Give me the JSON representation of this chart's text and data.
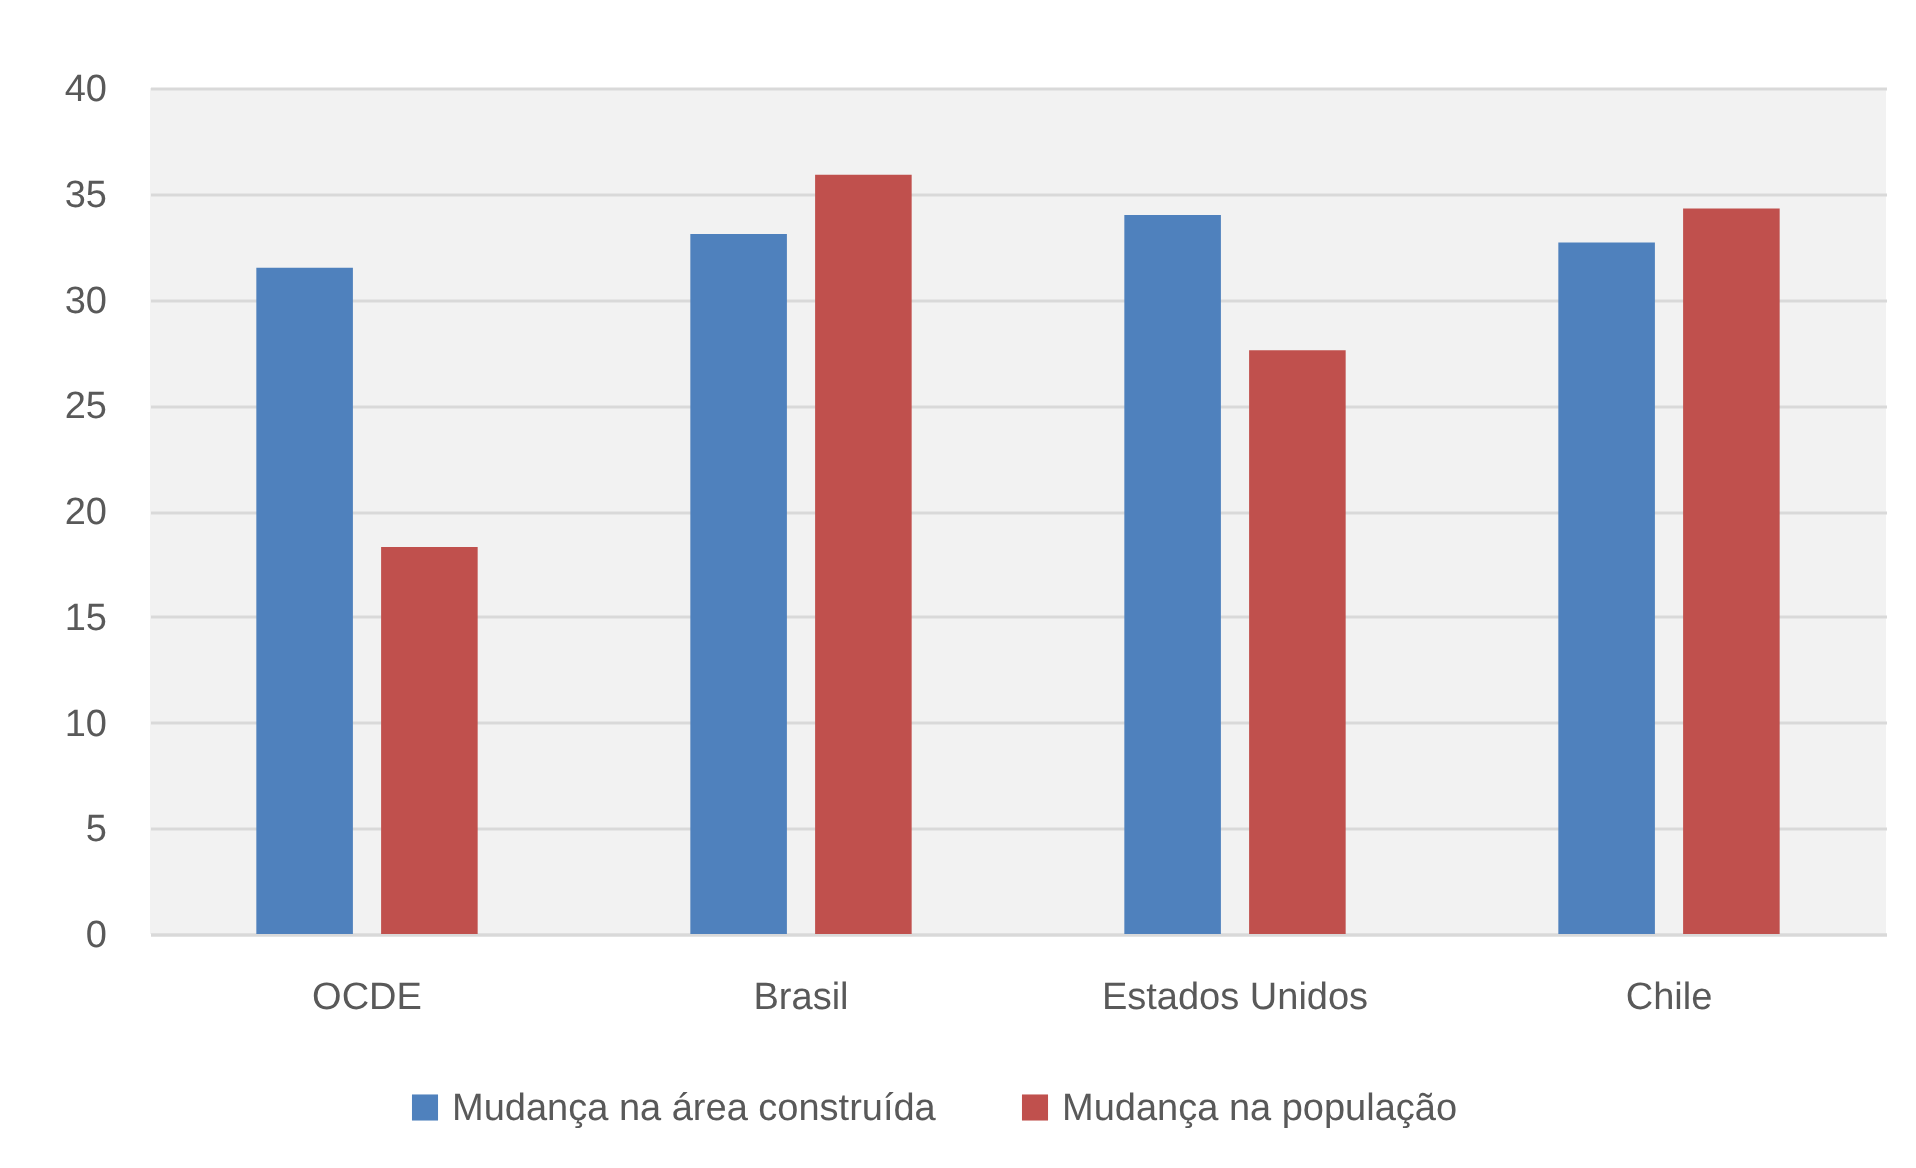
{
  "chart_data": {
    "type": "bar",
    "categories": [
      "OCDE",
      "Brasil",
      "Estados Unidos",
      "Chile"
    ],
    "series": [
      {
        "name": "Mudança na área construída",
        "color": "#4f81bd",
        "values": [
          31.5,
          33.1,
          34.0,
          32.7
        ]
      },
      {
        "name": "Mudança na população",
        "color": "#c0504d",
        "values": [
          18.3,
          35.9,
          27.6,
          34.3
        ]
      }
    ],
    "ylim": [
      0,
      40
    ],
    "yticks": [
      0,
      5,
      10,
      15,
      20,
      25,
      30,
      35,
      40
    ],
    "grid": "y",
    "legend": "bottom"
  }
}
